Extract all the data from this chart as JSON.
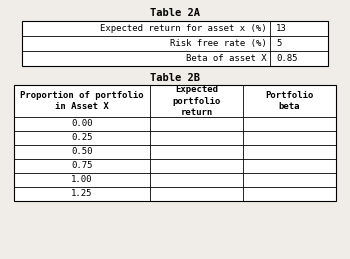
{
  "title_2a": "Table 2A",
  "title_2b": "Table 2B",
  "table2a_rows": [
    [
      "Expected return for asset x (%)",
      "13"
    ],
    [
      "Risk free rate (%)",
      "5"
    ],
    [
      "Beta of asset X",
      "0.85"
    ]
  ],
  "table2b_headers": [
    "Proportion of portfolio\nin Asset X",
    "Expected\nportfolio\nreturn",
    "Portfolio\nbeta"
  ],
  "table2b_rows": [
    [
      "0.00",
      "",
      ""
    ],
    [
      "0.25",
      "",
      ""
    ],
    [
      "0.50",
      "",
      ""
    ],
    [
      "0.75",
      "",
      ""
    ],
    [
      "1.00",
      "",
      ""
    ],
    [
      "1.25",
      "",
      ""
    ]
  ],
  "bg_color": "#f0ede8",
  "font_family": "monospace",
  "title_fontsize": 7.5,
  "cell_fontsize": 6.5,
  "fig_width": 3.5,
  "fig_height": 2.59,
  "dpi": 100
}
